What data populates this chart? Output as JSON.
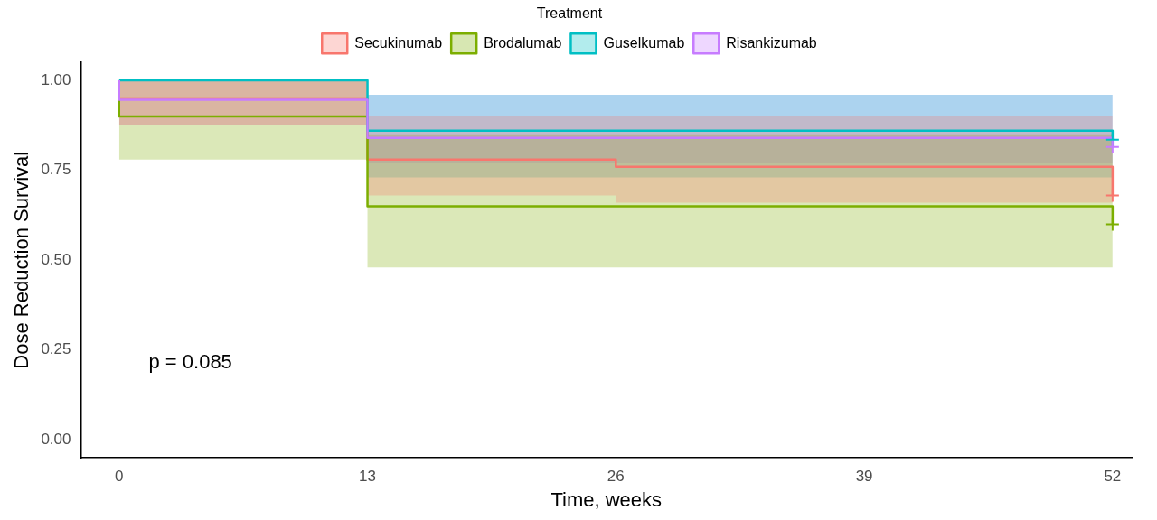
{
  "chart_data": {
    "type": "step",
    "xlabel": "Time, weeks",
    "ylabel": "Dose Reduction Survival",
    "legend_title": "Treatment",
    "legend": "top",
    "grid": false,
    "line_style": "solid",
    "xlim": [
      -2,
      53
    ],
    "xticks": [
      0,
      13,
      26,
      39,
      52
    ],
    "ylim": [
      -0.05,
      1.05
    ],
    "yticks": [
      {
        "value": 0,
        "label": "0.00"
      },
      {
        "value": 0.25,
        "label": "0.25"
      },
      {
        "value": 0.5,
        "label": "0.50"
      },
      {
        "value": 0.75,
        "label": "0.75"
      },
      {
        "value": 1,
        "label": "1.00"
      }
    ],
    "annotations": [
      "p = 0.085"
    ],
    "series": [
      {
        "name": "Secukinumab",
        "color": "#f8766d",
        "x": [
          0,
          13,
          26,
          39,
          52,
          52
        ],
        "values": [
          1,
          0.95,
          0.78,
          0.76,
          0.76,
          0.68
        ],
        "lower": [
          1,
          0.875,
          0.68,
          0.66,
          0.66,
          0.66
        ],
        "upper": [
          1,
          1,
          0.9,
          0.9,
          0.9,
          0.9
        ]
      },
      {
        "name": "Brodalumab",
        "color": "#7cae00",
        "x": [
          0,
          13,
          26,
          39,
          52,
          52
        ],
        "values": [
          1,
          0.9,
          0.65,
          0.65,
          0.65,
          0.6
        ],
        "lower": [
          1,
          0.78,
          0.48,
          0.48,
          0.48,
          0.48
        ],
        "upper": [
          1,
          1,
          0.85,
          0.85,
          0.85,
          0.85
        ]
      },
      {
        "name": "Guselkumab",
        "color": "#00bfc4",
        "x": [
          0,
          13,
          26,
          39,
          52,
          52
        ],
        "values": [
          1,
          1,
          0.86,
          0.86,
          0.86,
          0.835
        ],
        "lower": [
          1,
          1,
          0.73,
          0.73,
          0.73,
          0.73
        ],
        "upper": [
          1,
          1,
          0.96,
          0.96,
          0.96,
          0.96
        ]
      },
      {
        "name": "Risankizumab",
        "color": "#c77cff",
        "x": [
          0,
          13,
          26,
          39,
          52,
          52
        ],
        "values": [
          1,
          0.946,
          0.84,
          0.84,
          0.84,
          0.815
        ],
        "lower": [
          1,
          0.875,
          0.77,
          0.77,
          0.77,
          0.77
        ],
        "upper": [
          1,
          1,
          0.96,
          0.96,
          0.96,
          0.96
        ]
      },
      {
        "type": "scatter",
        "marker": "cross",
        "color": "#f8766d",
        "x": [
          52
        ],
        "values": [
          0.68
        ]
      },
      {
        "type": "scatter",
        "marker": "cross",
        "color": "#7cae00",
        "x": [
          52
        ],
        "values": [
          0.6
        ]
      },
      {
        "type": "scatter",
        "marker": "cross",
        "color": "#00bfc4",
        "x": [
          52
        ],
        "values": [
          0.835
        ]
      },
      {
        "type": "scatter",
        "marker": "cross",
        "color": "#c77cff",
        "x": [
          52
        ],
        "values": [
          0.815
        ]
      }
    ]
  }
}
